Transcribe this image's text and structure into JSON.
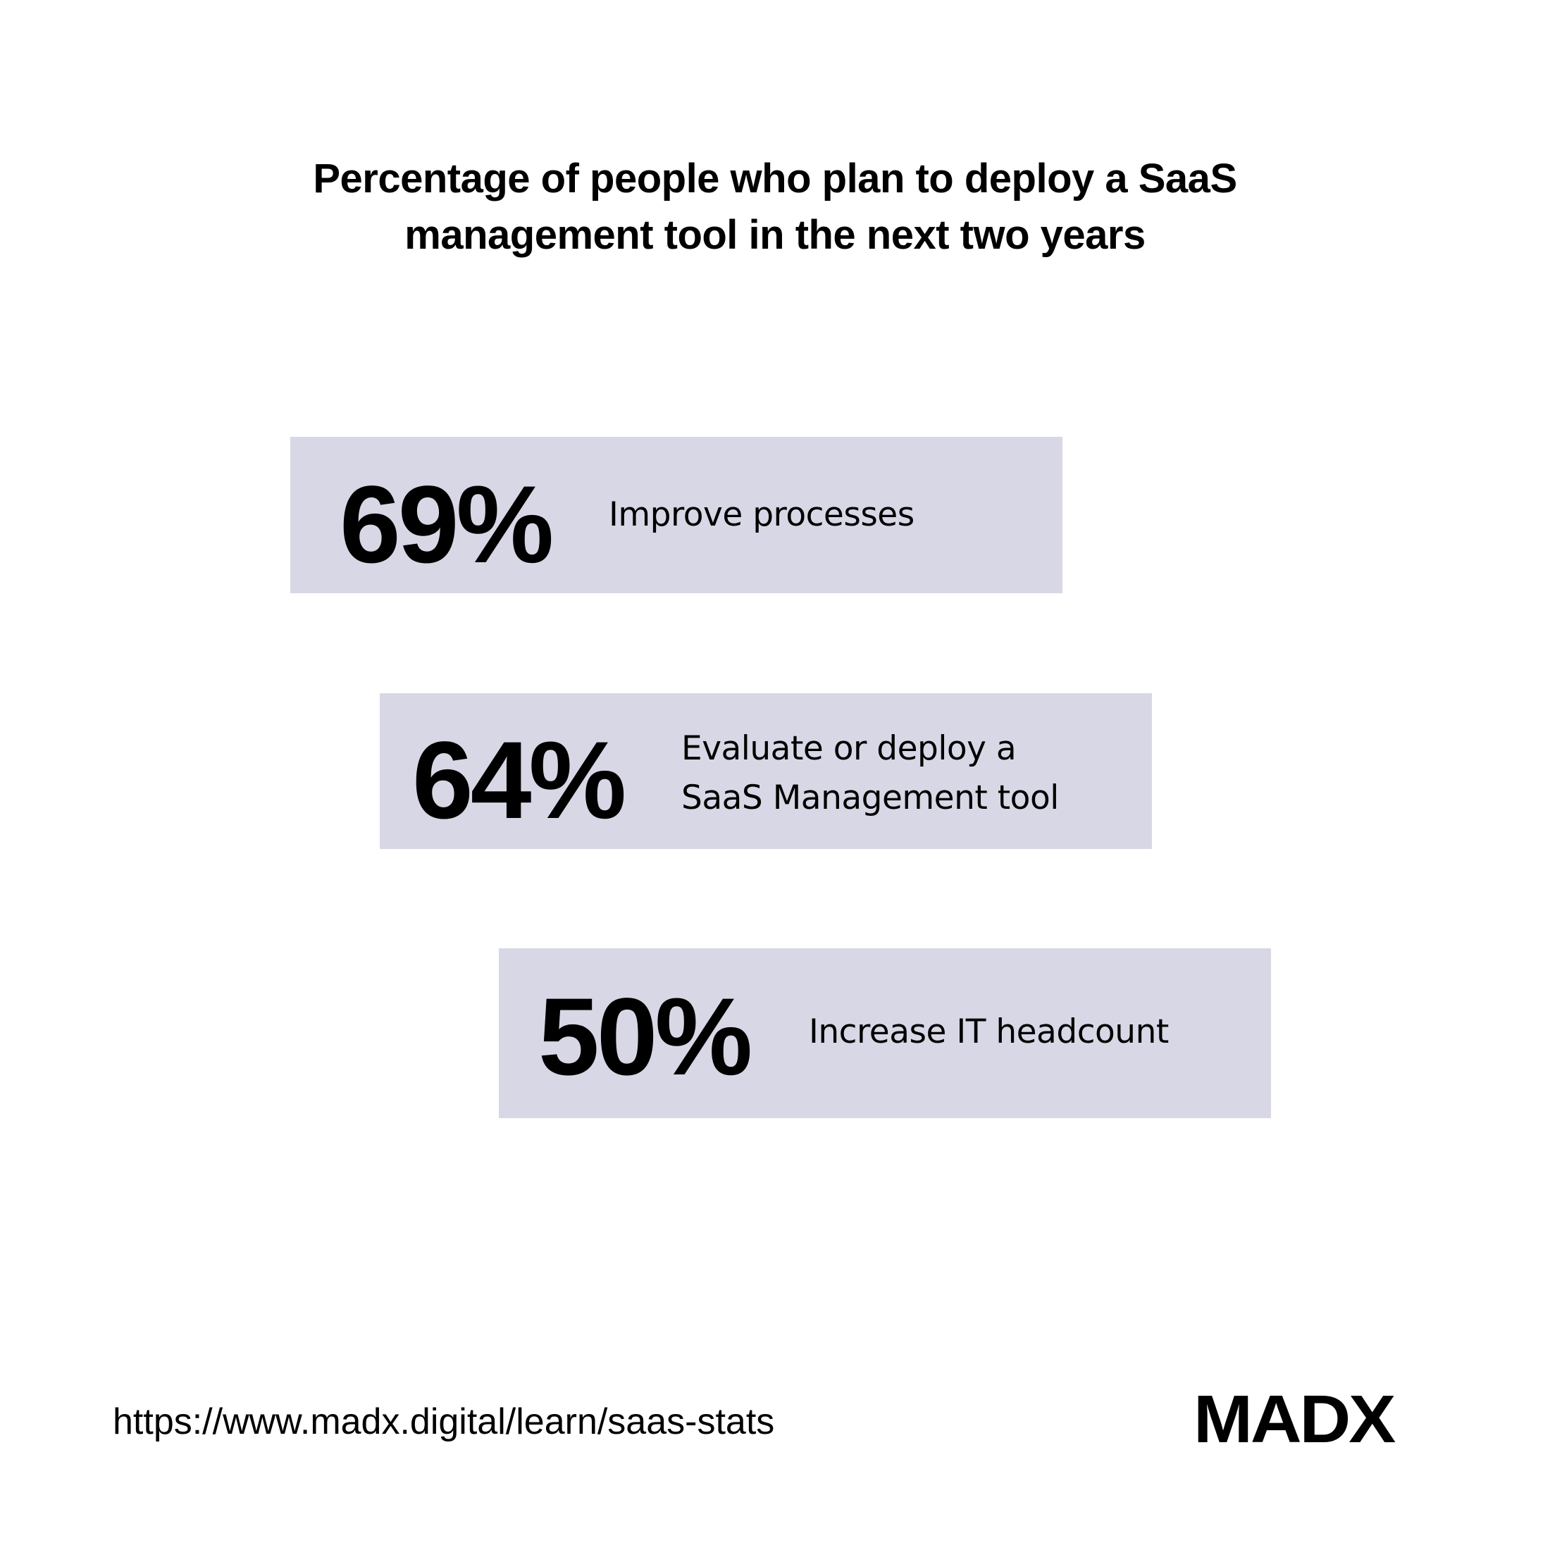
{
  "header": {
    "title_line1": "Percentage of people who plan to deploy a SaaS",
    "title_line2": "management tool in the next two years"
  },
  "stats": [
    {
      "value": "69%",
      "label_lines": [
        "Improve processes"
      ]
    },
    {
      "value": "64%",
      "label_lines": [
        "Evaluate or deploy a",
        "SaaS Management tool"
      ]
    },
    {
      "value": "50%",
      "label_lines": [
        "Increase IT headcount"
      ]
    }
  ],
  "footer": {
    "url": "https://www.madx.digital/learn/saas-stats",
    "logo": "MADX"
  },
  "colors": {
    "background": "#FFFFFF",
    "card": "#D8D7E5",
    "text": "#000000"
  },
  "chart_data": {
    "type": "table",
    "title": "Percentage of people who plan to deploy a SaaS management tool in the next two years",
    "categories": [
      "Improve processes",
      "Evaluate or deploy a SaaS Management tool",
      "Increase IT headcount"
    ],
    "values": [
      69,
      64,
      50
    ],
    "unit": "%"
  }
}
